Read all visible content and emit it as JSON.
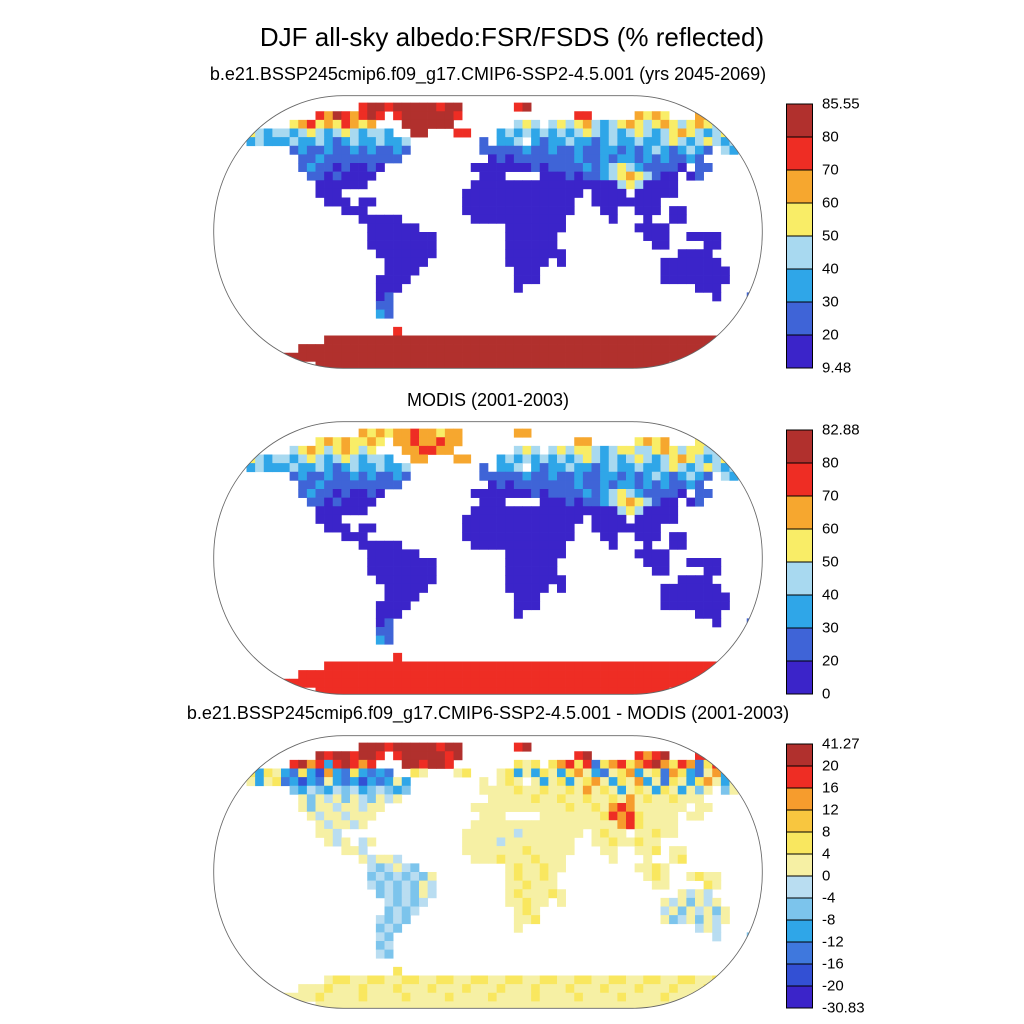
{
  "title": "DJF all-sky albedo:FSR/FSDS (% reflected)",
  "chart_data": {
    "type": "heatmap",
    "projection": "robinson-world-map",
    "units": "% reflected",
    "grid_legend": "each grid row string is one 5.6-degree latitude band, chars map to palette colors, dot = ocean/no data",
    "panels": [
      {
        "subtitle": "b.e21.BSSP245cmip6.f09_g17.CMIP6-SSP2-4.5.001 (yrs 2045-2069)",
        "colorbar": {
          "boundaries_top_to_bottom": [
            "85.55",
            "80",
            "70",
            "60",
            "50",
            "40",
            "30",
            "20",
            "9.48"
          ],
          "colors_top_to_bottom": [
            "#b1302d",
            "#ee2d24",
            "#f6a72f",
            "#f9ed67",
            "#a8d9f0",
            "#2fa6e8",
            "#3f64d7",
            "#3b24c9"
          ]
        },
        "palette": {
          "1": "#3b24c9",
          "2": "#3f64d7",
          "3": "#2fa6e8",
          "4": "#a8d9f0",
          "5": "#f9ed67",
          "6": "#f6a72f",
          "7": "#ee2d24",
          "8": "#b1302d"
        },
        "grid": [
          "................................................................",
          ".................788788888788......78...........................",
          "............76876787.78888887.............77.....6565...66......",
          ".........5675657656...888888.......454.4545643456545654565456756",
          "...454344345434543443..88...77...3434343434543434543456543456545",
          "....3433343343234334334........2.334.323343323433433454345434343",
          ".........23223223232232........222223223223223323234323432.43...",
          "..........223222222222..........1212222222322323323232232.......",
          "..........2322121121..........1111111212222323454322221.22......",
          "...........22121111............111....1112122345654211.12.......",
          "............111111............111111111111111114541111..........",
          "............111..............11111111111111.1111.11111..........",
          ".............111.11..........1111111111111..11111111............",
          "...............111...........1111111111111...11..111.11.........",
          ".................11111........11111111111.....1...1..11.........",
          "..................111111..........1111111........1111...........",
          "..................11111111........111111..........111..1111.....",
          "..................11111111........111111...........11....11.....",
          "...................1111111........1111111.............1111......",
          "....................11111.........11111.1...........1111111.....",
          "....................1111...........111..............11111111....",
          "...................1111............111..............11111111....",
          "...................111.............1....................111....1",
          "...................12.....................................1...2.",
          "...................22...........................................",
          "...................32...........................................",
          "................................................................",
          ".....................7..........................................",
          ".............8888888888888888888888888888888888888888888888888..",
          "..........88888888888888888888888888888888888888888888888888888.",
          "........88888888888888888888888888888888888888888888888888888...",
          "............88888888888888888888888888888888888888888..........."
        ]
      },
      {
        "subtitle": "MODIS (2001-2003)",
        "colorbar": {
          "boundaries_top_to_bottom": [
            "82.88",
            "80",
            "70",
            "60",
            "50",
            "40",
            "30",
            "20",
            "0"
          ],
          "colors_top_to_bottom": [
            "#b1302d",
            "#ee2d24",
            "#f6a72f",
            "#f9ed67",
            "#a8d9f0",
            "#2fa6e8",
            "#3f64d7",
            "#3b24c9"
          ]
        },
        "palette": {
          "1": "#3b24c9",
          "2": "#3f64d7",
          "3": "#2fa6e8",
          "4": "#a8d9f0",
          "5": "#f9ed67",
          "6": "#f6a72f",
          "7": "#ee2d24",
          "8": "#b1302d"
        },
        "grid": [
          "................................................................",
          ".................656566766566......66...........................",
          "............56565565.66766766.............66.....5656...55......",
          ".........4565456545...667766.......454.4545543455445654554456556",
          "...454344345434543443..66...66...3434343434543434543456543456545",
          "....3433343343234334334........2.334.323343323433433454345434343",
          ".........23223223232232........222223223223223323234323432.43...",
          "..........223222222222..........1212222222322323323232232.......",
          "..........2322121121..........1111111212222323454322221.22......",
          "...........22121111............111....1112122345654211.12.......",
          "............111111............111111111111111114541111..........",
          "............111..............11111111111111.1111.11111..........",
          ".............111.11..........1111111111111..11111111............",
          "...............111...........1111111111111...11..111.11.........",
          ".................11111........11111111111.....1...1..11.........",
          "..................111111..........1111111........1111...........",
          "..................11111111........111111..........111..1111.....",
          "..................11111111........111111...........11....11.....",
          "...................1111111........1111111.............1111......",
          "....................11111.........11111.1...........1111111.....",
          "....................1111...........111..............11111111....",
          "...................1111............111..............11111111....",
          "...................111.............1....................111....1",
          "...................12.....................................1...2.",
          "...................22...........................................",
          "...................32...........................................",
          "................................................................",
          ".....................7..........................................",
          ".............7777777777777777777777777777777777777777777777777..",
          "..........77777777777777777777777777777777777777777777777777777.",
          "........77777777777777777777777777777777777777777777777777777...",
          "............77777777777777777777777777777777777777777..........."
        ]
      },
      {
        "subtitle": "b.e21.BSSP245cmip6.f09_g17.CMIP6-SSP2-4.5.001 - MODIS (2001-2003)",
        "colorbar": {
          "boundaries_top_to_bottom": [
            "41.27",
            "20",
            "16",
            "12",
            "8",
            "4",
            "0",
            "-4",
            "-8",
            "-12",
            "-16",
            "-20",
            "-30.83"
          ],
          "colors_top_to_bottom": [
            "#b1302d",
            "#ee2d24",
            "#f69c2d",
            "#f8c63f",
            "#f9e75f",
            "#f6f0a4",
            "#b9ddf1",
            "#7cc4ec",
            "#2fa6e8",
            "#3f78dd",
            "#3350d4",
            "#3b24c9"
          ]
        },
        "palette": {
          "1": "#3b24c9",
          "2": "#3350d4",
          "3": "#3f78dd",
          "4": "#2fa6e8",
          "5": "#7cc4ec",
          "6": "#b9ddf1",
          "7": "#f6f0a4",
          "8": "#f9e75f",
          "9": "#f8c63f",
          "a": "#f69c2d",
          "b": "#ee2d24",
          "c": "#b1302d"
        },
        "grid": [
          "................................................................",
          ".................cccbcccccbcc......bc...........................",
          "............cbccbccb.bcccccbc.............bc.....babc...bb......",
          ".........bcab4bcbab...ccbccb.......878.8ab8b38ab8abca8ba38babcab",
          "...7848743842a4384343..87...78...784748748a74378a4783a8437a48748",
          "....7478342437434243474........7.787.7478478a7487a4738748a747874",
          ".........54654656456545........777787787787a78747874874757.57...",
          "..........757675765767..........7777787787787787a78778777.......",
          "..........7577677677..........7777777777787787aba777777.77......",
          "...........76776777............777....77777778bab87777.77.......",
          "............767767............77777777777777777ab87777..........",
          "............776..............77777767777777.7877.77877..........",
          ".............767.67..........7777677777777..77877877............",
          "...............776...........7777777877777...77..778.77.........",
          ".................76776........77787778777.....7...7..78.........",
          "..................656765..........7877877........7787...........",
          "..................56565657........787787..........787..7877.....",
          "..................65656576........778777...........77....87.....",
          "...................5656576........7877787.............7676......",
          "....................65656.........77877.7...........7675767.....",
          "....................5656...........787..............67576757....",
          "...................6565............778..............75675767....",
          "...................565.............7....................676....5",
          "...................65.....................................6...5.",
          "...................56...........................................",
          "...................65...........................................",
          "................................................................",
          ".....................8..........................................",
          ".............7887788778877887788778877887788778877887788778877..",
          "..........77787778777877787778777877787778777877787778777877787.",
          "........77778777787777877778777787777877778777787777877778777...",
          "............77777777777777777777777777777777777777777..........."
        ]
      }
    ]
  }
}
